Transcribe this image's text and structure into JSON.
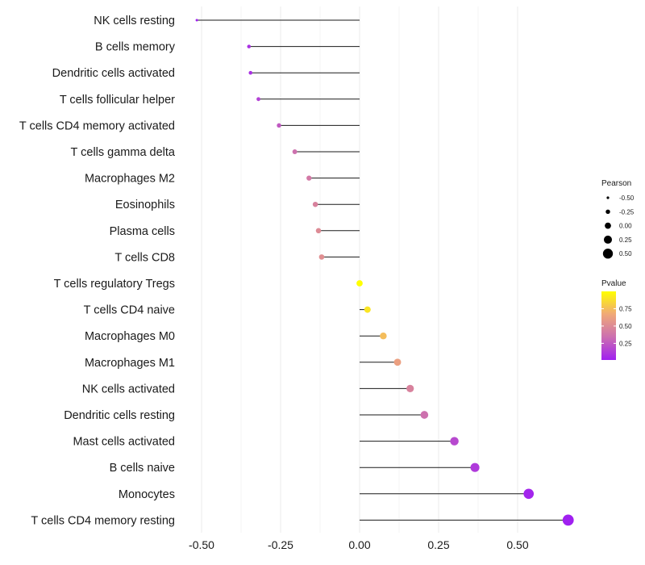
{
  "chart_data": {
    "type": "lollipop",
    "title": "",
    "xlabel": "",
    "ylabel": "",
    "xlim": [
      -0.52,
      0.68
    ],
    "x_ticks": [
      -0.5,
      -0.25,
      0.0,
      0.25,
      0.5
    ],
    "x_tick_labels": [
      "-0.50",
      "-0.25",
      "0.00",
      "0.25",
      "0.50"
    ],
    "grid": true,
    "categories": [
      "NK cells resting",
      "B cells memory",
      "Dendritic cells activated",
      "T cells follicular helper",
      "T cells CD4 memory activated",
      "T cells gamma delta",
      "Macrophages M2",
      "Eosinophils",
      "Plasma cells",
      "T cells CD8",
      "T cells regulatory  Tregs ",
      "T cells CD4 naive",
      "Macrophages M0",
      "Macrophages M1",
      "NK cells activated",
      "Dendritic cells resting",
      "Mast cells activated",
      "B cells naive",
      "Monocytes",
      "T cells CD4 memory resting"
    ],
    "values": [
      -0.515,
      -0.35,
      -0.345,
      -0.32,
      -0.255,
      -0.205,
      -0.16,
      -0.14,
      -0.13,
      -0.12,
      0.0,
      0.025,
      0.075,
      0.12,
      0.16,
      0.205,
      0.3,
      0.365,
      0.535,
      0.66
    ],
    "pvalues": [
      0.01,
      0.08,
      0.08,
      0.15,
      0.25,
      0.35,
      0.4,
      0.45,
      0.5,
      0.52,
      1.0,
      0.9,
      0.75,
      0.62,
      0.45,
      0.35,
      0.18,
      0.12,
      0.03,
      0.01
    ],
    "legend_size": {
      "title": "Pearson",
      "values": [
        -0.5,
        -0.25,
        0.0,
        0.25,
        0.5
      ],
      "labels": [
        "-0.50",
        "-0.25",
        "0.00",
        "0.25",
        "0.50"
      ]
    },
    "legend_color": {
      "title": "Pvalue",
      "ticks": [
        0.25,
        0.5,
        0.75
      ],
      "labels": [
        "0.25",
        "0.50",
        "0.75"
      ],
      "range": [
        0.01,
        1.0
      ],
      "colors": [
        "#a020f0",
        "#cc6fb0",
        "#f0a878",
        "#ffff00"
      ]
    },
    "legend_position": "right"
  }
}
